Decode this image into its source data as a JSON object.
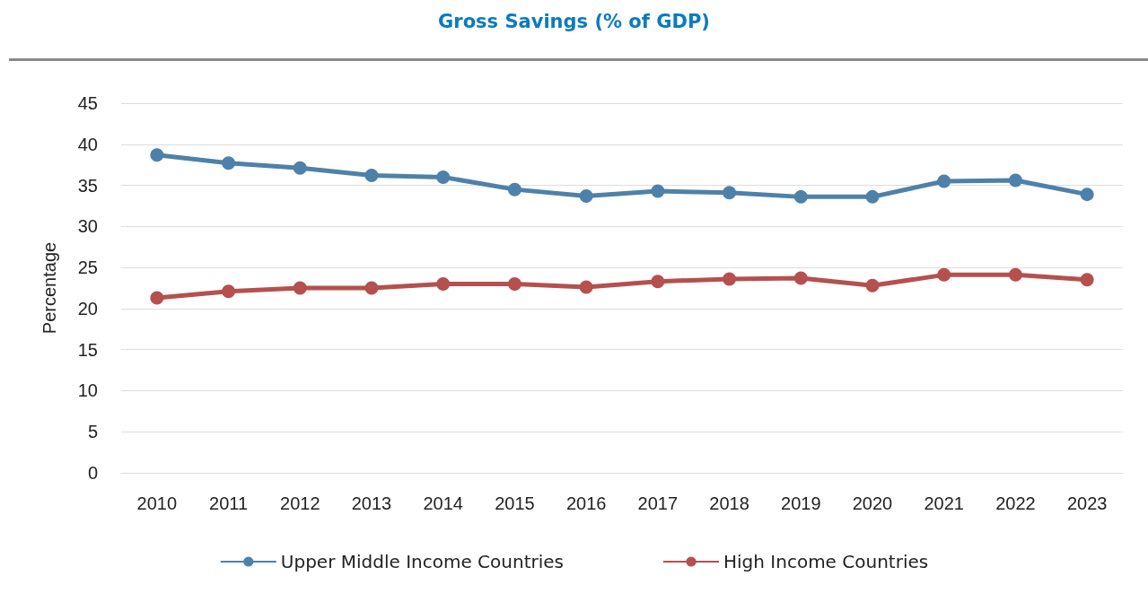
{
  "chart_data": {
    "type": "line",
    "title": "Gross Savings (% of GDP)",
    "ylabel": "Percentage",
    "categories": [
      "2010",
      "2011",
      "2012",
      "2013",
      "2014",
      "2015",
      "2016",
      "2017",
      "2018",
      "2019",
      "2020",
      "2021",
      "2022",
      "2023"
    ],
    "series": [
      {
        "name": "Upper Middle Income Countries",
        "color": "#4e81a9",
        "values": [
          38.7,
          37.7,
          37.1,
          36.2,
          36.0,
          34.5,
          33.7,
          34.3,
          34.1,
          33.6,
          33.6,
          35.5,
          35.6,
          33.9
        ]
      },
      {
        "name": "High Income Countries",
        "color": "#b5504f",
        "values": [
          21.3,
          22.1,
          22.5,
          22.5,
          23.0,
          23.0,
          22.6,
          23.3,
          23.6,
          23.7,
          22.8,
          24.1,
          24.1,
          23.5
        ]
      }
    ],
    "ylim": [
      0,
      45
    ],
    "yticks": [
      0,
      5,
      10,
      15,
      20,
      25,
      30,
      35,
      40,
      45
    ],
    "grid": "y",
    "legend": "bottom",
    "marker": "circle",
    "line_style": "solid"
  }
}
